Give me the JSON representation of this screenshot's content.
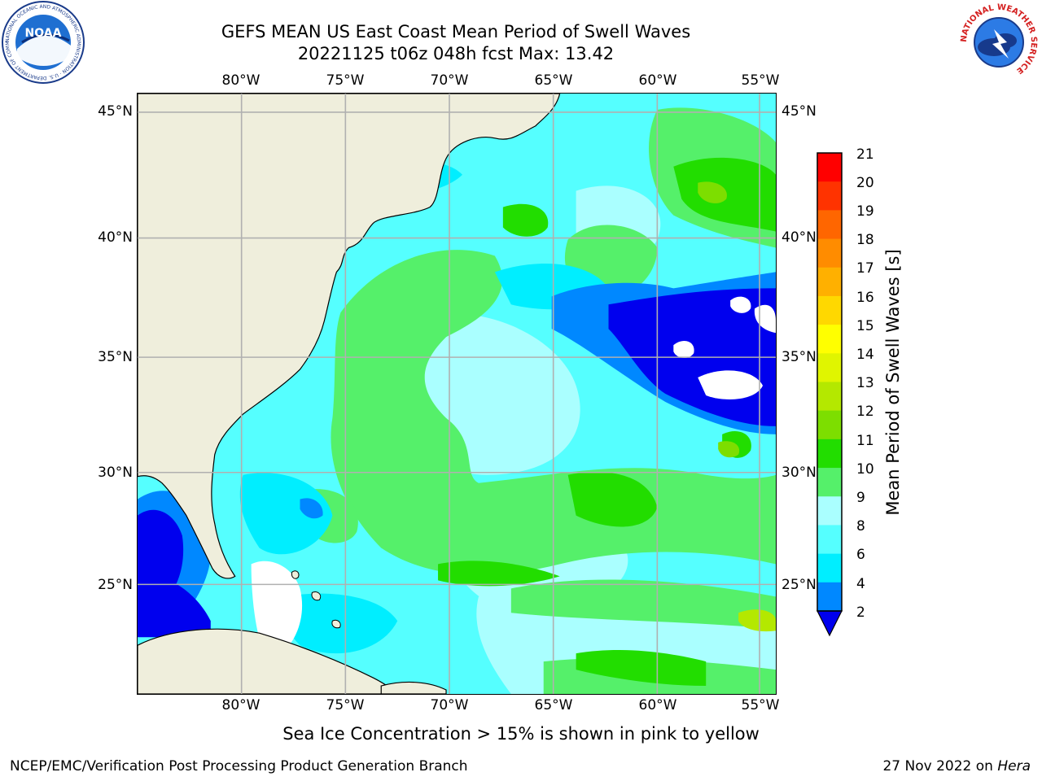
{
  "title_line1": "GEFS MEAN US East Coast Mean Period of Swell Waves",
  "title_line2": "20221125 t06z 048h fcst   Max: 13.42",
  "longitudes": [
    "80°W",
    "75°W",
    "70°W",
    "65°W",
    "60°W",
    "55°W"
  ],
  "latitudes": [
    "45°N",
    "40°N",
    "35°N",
    "30°N",
    "25°N"
  ],
  "colorbar": {
    "label": "Mean Period of Swell Waves [s]",
    "ticks": [
      "21",
      "20",
      "19",
      "18",
      "17",
      "16",
      "15",
      "14",
      "13",
      "12",
      "11",
      "10",
      "9",
      "8",
      "6",
      "4",
      "2"
    ],
    "colors": [
      "#ff0000",
      "#ff3300",
      "#ff6600",
      "#ff8c00",
      "#ffb000",
      "#ffd800",
      "#ffff00",
      "#e0f500",
      "#b4e800",
      "#7dde00",
      "#22dd00",
      "#55f06a",
      "#aaffff",
      "#55ffff",
      "#00eeff",
      "#0088ff"
    ],
    "extend_color": "#0000ee"
  },
  "note": "Sea Ice Concentration > 15% is shown in pink to yellow",
  "footer_left": "NCEP/EMC/Verification Post Processing Product Generation Branch",
  "footer_date": "27 Nov 2022 on ",
  "footer_host": "Hera",
  "logos": {
    "noaa_text": "NOAA",
    "noaa_ring": "NATIONAL OCEANIC AND ATMOSPHERIC ADMINISTRATION · U.S. DEPARTMENT OF COMMERCE",
    "nws_ring": "NATIONAL WEATHER SERVICE"
  },
  "colors": {
    "land": "#efeedc",
    "ocean_base": "#55ffff",
    "grid": "#b0b0b0"
  }
}
